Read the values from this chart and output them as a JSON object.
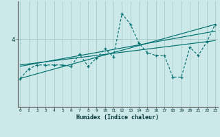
{
  "title": "",
  "xlabel": "Humidex (Indice chaleur)",
  "bg_color": "#cce8e8",
  "grid_color": "#aacfcf",
  "line_color": "#007070",
  "x_ticks": [
    0,
    1,
    2,
    3,
    4,
    5,
    6,
    7,
    8,
    9,
    10,
    11,
    12,
    13,
    14,
    15,
    16,
    17,
    18,
    19,
    20,
    21,
    22,
    23
  ],
  "y_tick_val": 4.0,
  "y_tick_label": "4",
  "series": [
    [
      0,
      2.55
    ],
    [
      1,
      2.9
    ],
    [
      2,
      3.05
    ],
    [
      3,
      3.05
    ],
    [
      4,
      3.05
    ],
    [
      5,
      3.05
    ],
    [
      6,
      3.0
    ],
    [
      7,
      3.45
    ],
    [
      8,
      3.0
    ],
    [
      9,
      3.3
    ],
    [
      10,
      3.65
    ],
    [
      11,
      3.35
    ],
    [
      12,
      4.95
    ],
    [
      13,
      4.55
    ],
    [
      14,
      3.85
    ],
    [
      15,
      3.5
    ],
    [
      16,
      3.4
    ],
    [
      17,
      3.4
    ],
    [
      18,
      2.6
    ],
    [
      19,
      2.6
    ],
    [
      20,
      3.7
    ],
    [
      21,
      3.4
    ],
    [
      22,
      3.9
    ],
    [
      23,
      4.55
    ]
  ],
  "trend_lines": [
    {
      "x0": 0,
      "y0": 2.55,
      "x1": 23,
      "y1": 4.55
    },
    {
      "x0": 0,
      "y0": 3.0,
      "x1": 23,
      "y1": 4.3
    },
    {
      "x0": 0,
      "y0": 3.05,
      "x1": 23,
      "y1": 3.95
    }
  ],
  "xlim": [
    -0.3,
    23.3
  ],
  "ylim": [
    1.5,
    5.4
  ],
  "yticks": [
    4.0
  ]
}
